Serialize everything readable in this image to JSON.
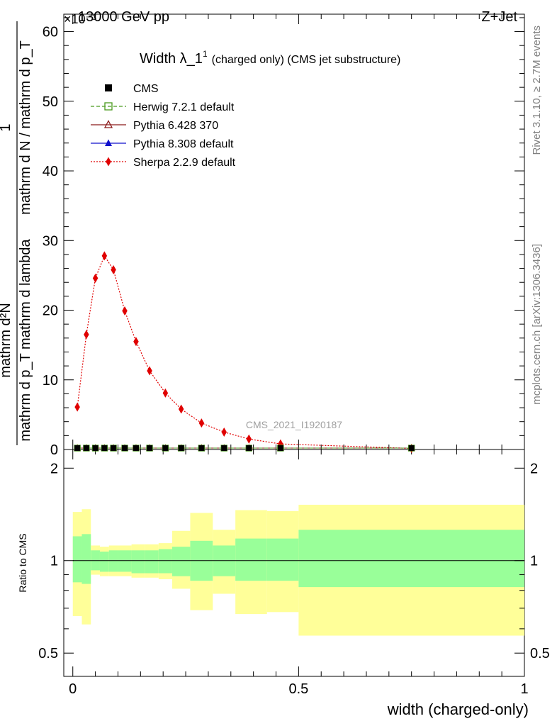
{
  "header": {
    "left": "13000 GeV pp",
    "right": "Z+Jet",
    "exponent": "×10⁻³"
  },
  "side": {
    "rivet": "Rivet 3.1.10, ≥ 2.7M events",
    "mcplots": "mcplots.cern.ch [arXiv:1306.3436]"
  },
  "chart_data": [
    {
      "type": "line",
      "title": "Width λ_1¹ (charged only) (CMS jet substructure)",
      "title_main": "Width λ_1",
      "title_sup": "1",
      "title_rest": "(charged only) (CMS jet substructure)",
      "ylabel_num": "1",
      "ylabel_den": "mathrm d N / mathrm d p_T",
      "ylabel_num2": "mathrm d²N",
      "ylabel_den2": "mathrm d p_T mathrm d lambda",
      "ylim": [
        0,
        62.5
      ],
      "yticks": [
        0,
        10,
        20,
        30,
        40,
        50,
        60
      ],
      "ytick_labels": [
        "0",
        "10",
        "20",
        "30",
        "40",
        "50",
        "60"
      ],
      "xlim": [
        -0.02,
        1.0
      ],
      "watermark": "CMS_2021_I1920187",
      "legend_position": "top-left",
      "legend": [
        {
          "label": "CMS",
          "color": "#000000",
          "marker": "filled-square"
        },
        {
          "label": "Herwig 7.2.1 default",
          "color": "#4a9a1e",
          "marker": "open-square",
          "dash": "dashed"
        },
        {
          "label": "Pythia 6.428 370",
          "color": "#8b1a1a",
          "marker": "open-triangle",
          "dash": "solid"
        },
        {
          "label": "Pythia 8.308 default",
          "color": "#1010cc",
          "marker": "filled-triangle",
          "dash": "solid"
        },
        {
          "label": "Sherpa 2.2.9 default",
          "color": "#e00000",
          "marker": "filled-diamond",
          "dash": "dotted"
        }
      ],
      "x": [
        0.01,
        0.03,
        0.05,
        0.07,
        0.09,
        0.115,
        0.14,
        0.17,
        0.205,
        0.24,
        0.285,
        0.335,
        0.39,
        0.46,
        0.75
      ],
      "series": [
        {
          "name": "CMS",
          "values": [
            0.2,
            0.2,
            0.2,
            0.2,
            0.2,
            0.2,
            0.2,
            0.2,
            0.2,
            0.2,
            0.2,
            0.2,
            0.2,
            0.2,
            0.2
          ]
        },
        {
          "name": "Herwig 7.2.1 default",
          "values": [
            0.2,
            0.2,
            0.2,
            0.2,
            0.2,
            0.2,
            0.2,
            0.2,
            0.2,
            0.2,
            0.2,
            0.2,
            0.2,
            0.2,
            0.2
          ]
        },
        {
          "name": "Pythia 6.428 370",
          "values": [
            0.2,
            0.2,
            0.2,
            0.2,
            0.2,
            0.2,
            0.2,
            0.2,
            0.2,
            0.2,
            0.2,
            0.2,
            0.2,
            0.2,
            0.2
          ]
        },
        {
          "name": "Pythia 8.308 default",
          "values": [
            0.2,
            0.2,
            0.2,
            0.2,
            0.2,
            0.2,
            0.2,
            0.2,
            0.2,
            0.2,
            0.2,
            0.2,
            0.2,
            0.2,
            0.2
          ]
        },
        {
          "name": "Sherpa 2.2.9 default",
          "values": [
            6.1,
            16.5,
            24.6,
            27.8,
            25.8,
            19.9,
            15.5,
            11.3,
            8.1,
            5.8,
            3.8,
            2.5,
            1.5,
            0.8,
            0.15
          ]
        }
      ]
    },
    {
      "type": "area",
      "ylabel": "Ratio to CMS",
      "ylim": [
        0.42,
        2.3
      ],
      "yticks": [
        0.5,
        1,
        2
      ],
      "ytick_labels": [
        "0.5",
        "1",
        "2"
      ],
      "xlim": [
        -0.02,
        1.0
      ],
      "xticks": [
        0,
        0.5,
        1
      ],
      "xtick_labels": [
        "0",
        "0.5",
        "1"
      ],
      "xlabel": "width (charged-only)",
      "reference": 1,
      "bins": [
        {
          "lo": 0.0,
          "hi": 0.02,
          "inner": [
            0.85,
            1.2
          ],
          "outer": [
            0.66,
            1.44
          ]
        },
        {
          "lo": 0.02,
          "hi": 0.04,
          "inner": [
            0.84,
            1.22
          ],
          "outer": [
            0.62,
            1.47
          ]
        },
        {
          "lo": 0.04,
          "hi": 0.06,
          "inner": [
            0.93,
            1.08
          ],
          "outer": [
            0.9,
            1.12
          ]
        },
        {
          "lo": 0.06,
          "hi": 0.08,
          "inner": [
            0.92,
            1.07
          ],
          "outer": [
            0.89,
            1.11
          ]
        },
        {
          "lo": 0.08,
          "hi": 0.1,
          "inner": [
            0.92,
            1.08
          ],
          "outer": [
            0.89,
            1.12
          ]
        },
        {
          "lo": 0.1,
          "hi": 0.13,
          "inner": [
            0.92,
            1.08
          ],
          "outer": [
            0.89,
            1.12
          ]
        },
        {
          "lo": 0.13,
          "hi": 0.16,
          "inner": [
            0.91,
            1.08
          ],
          "outer": [
            0.88,
            1.13
          ]
        },
        {
          "lo": 0.16,
          "hi": 0.19,
          "inner": [
            0.91,
            1.08
          ],
          "outer": [
            0.88,
            1.13
          ]
        },
        {
          "lo": 0.19,
          "hi": 0.22,
          "inner": [
            0.91,
            1.09
          ],
          "outer": [
            0.87,
            1.14
          ]
        },
        {
          "lo": 0.22,
          "hi": 0.26,
          "inner": [
            0.89,
            1.11
          ],
          "outer": [
            0.81,
            1.25
          ]
        },
        {
          "lo": 0.26,
          "hi": 0.31,
          "inner": [
            0.86,
            1.16
          ],
          "outer": [
            0.69,
            1.43
          ]
        },
        {
          "lo": 0.31,
          "hi": 0.36,
          "inner": [
            0.89,
            1.12
          ],
          "outer": [
            0.78,
            1.26
          ]
        },
        {
          "lo": 0.36,
          "hi": 0.43,
          "inner": [
            0.86,
            1.18
          ],
          "outer": [
            0.67,
            1.46
          ]
        },
        {
          "lo": 0.43,
          "hi": 0.5,
          "inner": [
            0.86,
            1.18
          ],
          "outer": [
            0.68,
            1.45
          ]
        },
        {
          "lo": 0.5,
          "hi": 1.0,
          "inner": [
            0.82,
            1.26
          ],
          "outer": [
            0.57,
            1.52
          ]
        }
      ],
      "colors": {
        "inner": "#99ff99",
        "outer": "#ffff99",
        "line": "#000000"
      }
    }
  ]
}
